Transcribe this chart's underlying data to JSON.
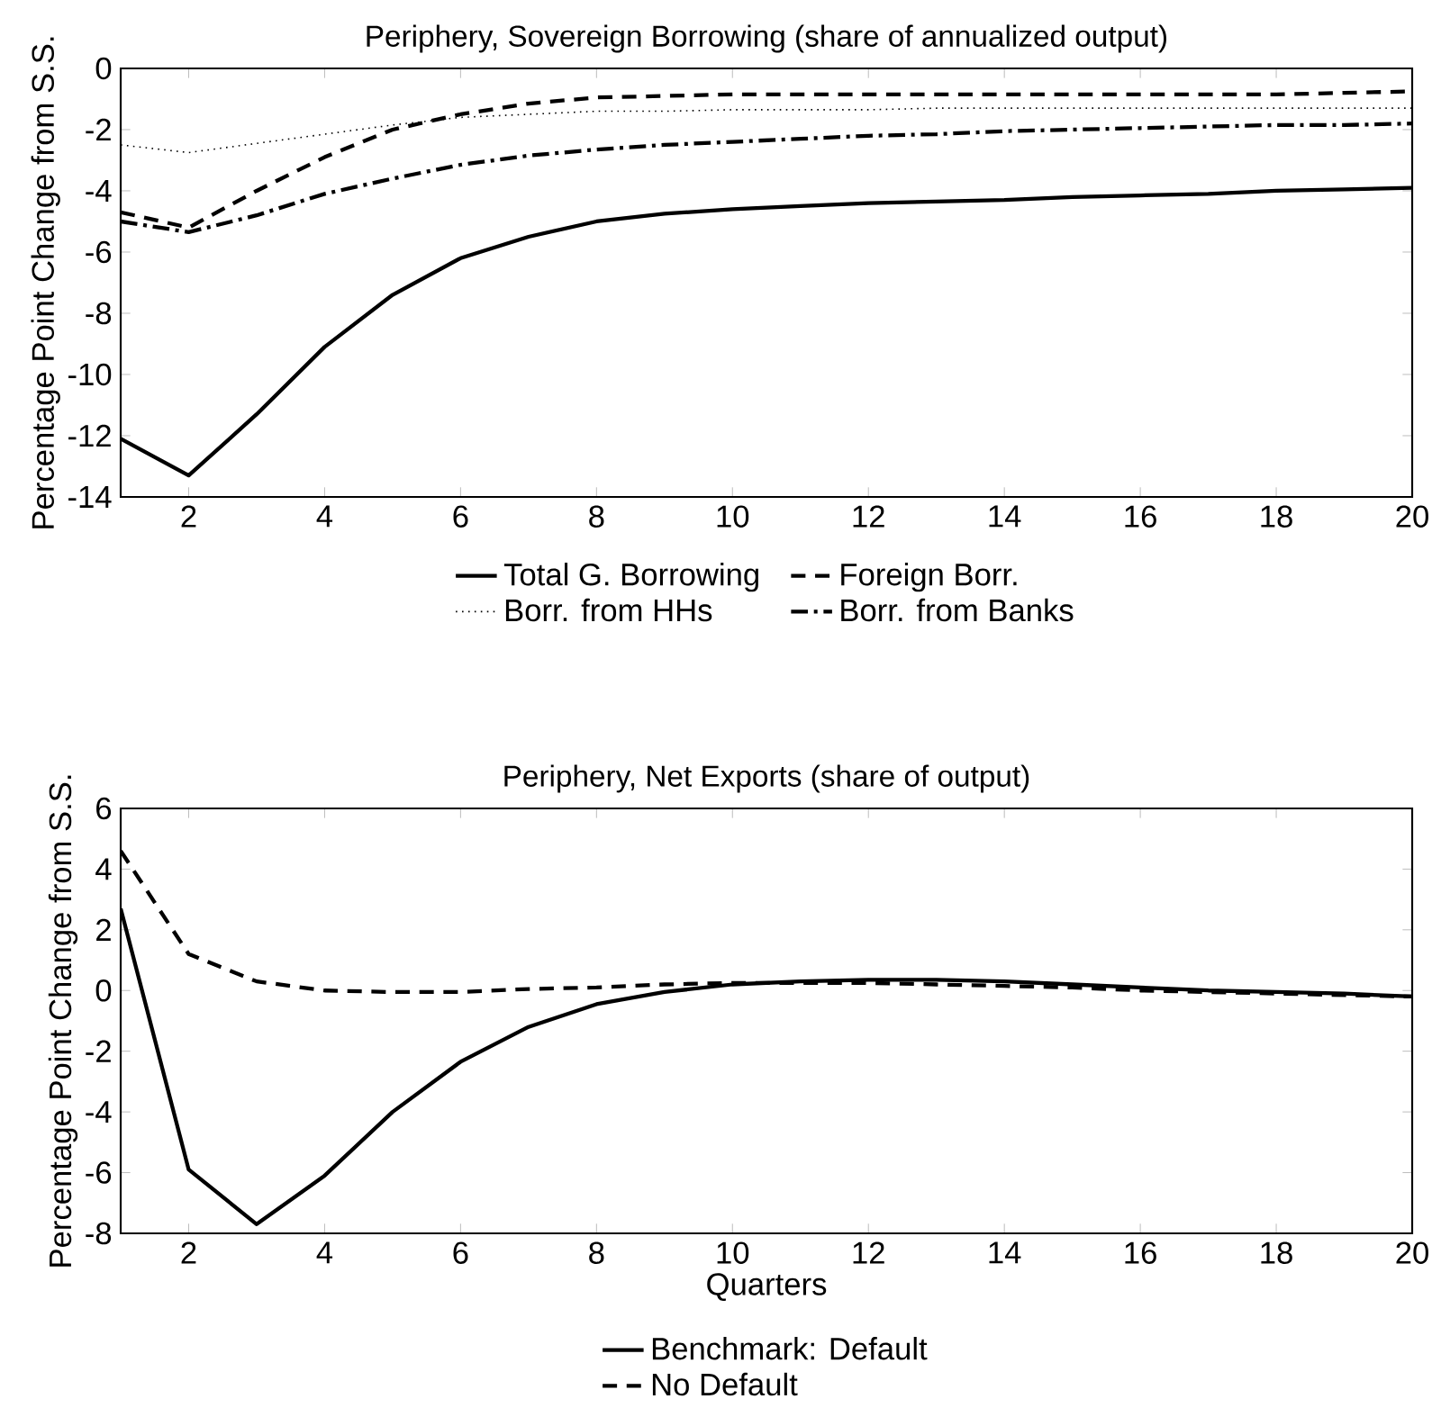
{
  "chart_data": [
    {
      "type": "line",
      "title": "Periphery, Sovereign Borrowing (share of annualized output)",
      "ylabel": "Percentage Point Change from S.S.",
      "x": [
        1,
        2,
        3,
        4,
        5,
        6,
        7,
        8,
        9,
        10,
        11,
        12,
        13,
        14,
        15,
        16,
        17,
        18,
        19,
        20
      ],
      "xlim": [
        1,
        20
      ],
      "ylim": [
        -14,
        0
      ],
      "xticks": [
        2,
        4,
        6,
        8,
        10,
        12,
        14,
        16,
        18,
        20
      ],
      "yticks": [
        -14,
        -12,
        -10,
        -8,
        -6,
        -4,
        -2,
        0
      ],
      "legend": "bottom",
      "grid": false,
      "series": [
        {
          "name": "Total G. Borrowing",
          "color": "#000000",
          "line_style": "solid",
          "values": [
            -12.1,
            -13.3,
            -11.3,
            -9.1,
            -7.4,
            -6.2,
            -5.5,
            -5.0,
            -4.75,
            -4.6,
            -4.5,
            -4.4,
            -4.35,
            -4.3,
            -4.2,
            -4.15,
            -4.1,
            -4.0,
            -3.95,
            -3.9
          ]
        },
        {
          "name": "Foreign Borr.",
          "color": "#000000",
          "line_style": "dashed",
          "values": [
            -4.7,
            -5.2,
            -4.0,
            -2.9,
            -2.0,
            -1.5,
            -1.15,
            -0.95,
            -0.9,
            -0.85,
            -0.85,
            -0.85,
            -0.85,
            -0.85,
            -0.85,
            -0.85,
            -0.85,
            -0.85,
            -0.8,
            -0.75
          ]
        },
        {
          "name": "Borr. from HHs",
          "color": "#000000",
          "line_style": "dotted",
          "values": [
            -2.5,
            -2.75,
            -2.45,
            -2.15,
            -1.85,
            -1.6,
            -1.5,
            -1.4,
            -1.4,
            -1.35,
            -1.35,
            -1.35,
            -1.3,
            -1.3,
            -1.3,
            -1.3,
            -1.3,
            -1.3,
            -1.3,
            -1.3
          ]
        },
        {
          "name": "Borr. from Banks",
          "color": "#000000",
          "line_style": "dashdot",
          "values": [
            -5.0,
            -5.35,
            -4.8,
            -4.1,
            -3.6,
            -3.15,
            -2.85,
            -2.65,
            -2.5,
            -2.4,
            -2.3,
            -2.2,
            -2.15,
            -2.05,
            -2.0,
            -1.95,
            -1.9,
            -1.85,
            -1.85,
            -1.8
          ]
        }
      ]
    },
    {
      "type": "line",
      "title": "Periphery, Net Exports (share of output)",
      "xlabel": "Quarters",
      "ylabel": "Percentage Point Change from S.S.",
      "x": [
        1,
        2,
        3,
        4,
        5,
        6,
        7,
        8,
        9,
        10,
        11,
        12,
        13,
        14,
        15,
        16,
        17,
        18,
        19,
        20
      ],
      "xlim": [
        1,
        20
      ],
      "ylim": [
        -8,
        6
      ],
      "xticks": [
        2,
        4,
        6,
        8,
        10,
        12,
        14,
        16,
        18,
        20
      ],
      "yticks": [
        -8,
        -6,
        -4,
        -2,
        0,
        2,
        4,
        6
      ],
      "legend": "bottom",
      "grid": false,
      "series": [
        {
          "name": "Benchmark: Default",
          "color": "#000000",
          "line_style": "solid",
          "values": [
            2.7,
            -5.9,
            -7.7,
            -6.1,
            -4.0,
            -2.35,
            -1.2,
            -0.45,
            -0.05,
            0.2,
            0.3,
            0.35,
            0.35,
            0.3,
            0.2,
            0.1,
            0.0,
            -0.05,
            -0.1,
            -0.2
          ]
        },
        {
          "name": "No Default",
          "color": "#000000",
          "line_style": "dashed",
          "values": [
            4.6,
            1.2,
            0.3,
            0.0,
            -0.05,
            -0.05,
            0.05,
            0.1,
            0.2,
            0.25,
            0.25,
            0.25,
            0.2,
            0.15,
            0.1,
            0.0,
            -0.05,
            -0.1,
            -0.15,
            -0.2
          ]
        }
      ]
    }
  ]
}
